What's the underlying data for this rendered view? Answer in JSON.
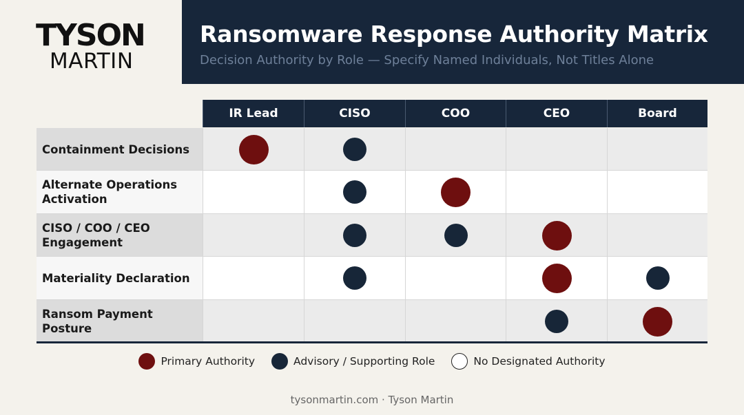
{
  "brand": {
    "line1": "TYSON",
    "line2": "MARTIN"
  },
  "header": {
    "title": "Ransomware Response Authority Matrix",
    "subtitle": "Decision Authority by Role — Specify Named Individuals, Not Titles Alone"
  },
  "matrix": {
    "columns": [
      "IR Lead",
      "CISO",
      "COO",
      "CEO",
      "Board"
    ],
    "rows": [
      {
        "label": "Containment Decisions",
        "cells": [
          "primary",
          "advisory",
          "none",
          "none",
          "none"
        ]
      },
      {
        "label": "Alternate Operations Activation",
        "cells": [
          "none",
          "advisory",
          "primary",
          "none",
          "none"
        ]
      },
      {
        "label": "CISO / COO / CEO Engagement",
        "cells": [
          "none",
          "advisory",
          "advisory",
          "primary",
          "none"
        ]
      },
      {
        "label": "Materiality Declaration",
        "cells": [
          "none",
          "advisory",
          "none",
          "primary",
          "advisory"
        ]
      },
      {
        "label": "Ransom Payment Posture",
        "cells": [
          "none",
          "none",
          "none",
          "advisory",
          "primary"
        ]
      }
    ]
  },
  "legend": {
    "primary": "Primary Authority",
    "advisory": "Advisory / Supporting Role",
    "none": "No Designated Authority"
  },
  "colors": {
    "primary": "#6e0f0f",
    "advisory": "#172638",
    "header_bg": "#17263a"
  },
  "footer": "tysonmartin.com · Tyson Martin"
}
